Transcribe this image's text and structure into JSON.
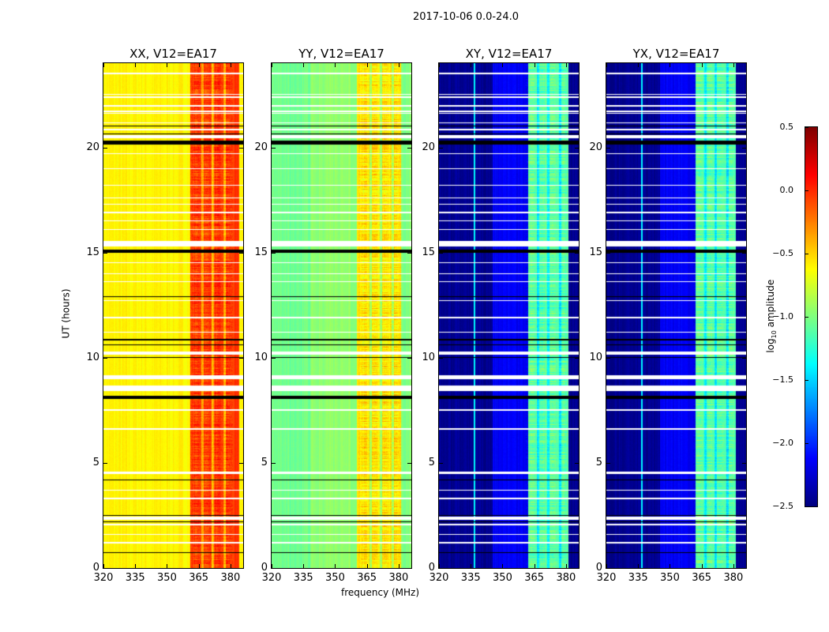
{
  "chart_data": {
    "type": "heatmap",
    "title": "2017-10-06 0.0-24.0",
    "xlabel": "frequency (MHz)",
    "ylabel": "UT (hours)",
    "xlim": [
      320,
      386
    ],
    "ylim": [
      0,
      24
    ],
    "xticks": [
      "320",
      "335",
      "350",
      "365",
      "380"
    ],
    "xtick_values": [
      320,
      335,
      350,
      365,
      380
    ],
    "yticks": [
      "0",
      "5",
      "10",
      "15",
      "20"
    ],
    "ytick_values": [
      0,
      5,
      10,
      15,
      20
    ],
    "colorbar": {
      "label": "log10 amplitude",
      "label_main": "log",
      "label_sub": "10",
      "label_rest": " amplitude",
      "range": [
        -2.5,
        0.5
      ],
      "ticks": [
        "0.5",
        "0.0",
        "−0.5",
        "−1.0",
        "−1.5",
        "−2.0",
        "−2.5"
      ],
      "tick_values": [
        0.5,
        0.0,
        -0.5,
        -1.0,
        -1.5,
        -2.0,
        -2.5
      ],
      "colormap": "jet"
    },
    "panels": [
      {
        "title": "XX, V12=EA17",
        "profile": [
          [
            320,
            361,
            -0.6
          ],
          [
            361,
            384,
            -0.05
          ],
          [
            384,
            386,
            -0.6
          ]
        ],
        "stripe_amp": 0.3
      },
      {
        "title": "YY, V12=EA17",
        "profile": [
          [
            320,
            338,
            -1.05
          ],
          [
            338,
            360,
            -0.95
          ],
          [
            360,
            381,
            -0.55
          ],
          [
            381,
            386,
            -1.0
          ]
        ],
        "stripe_amp": 0.35
      },
      {
        "title": "XY, V12=EA17",
        "profile": [
          [
            320,
            345,
            -2.45
          ],
          [
            345,
            362,
            -2.15
          ],
          [
            362,
            381,
            -1.1
          ],
          [
            381,
            386,
            -2.45
          ]
        ],
        "stripe_amp": 0.35
      },
      {
        "title": "YX, V12=EA17",
        "profile": [
          [
            320,
            345,
            -2.45
          ],
          [
            345,
            362,
            -2.15
          ],
          [
            362,
            381,
            -1.1
          ],
          [
            381,
            386,
            -2.45
          ]
        ],
        "stripe_amp": 0.35
      }
    ],
    "flagged_hours_white": [
      [
        23.5,
        23.56
      ],
      [
        22.5,
        22.56
      ],
      [
        22.38,
        22.44
      ],
      [
        21.95,
        22.01
      ],
      [
        21.7,
        21.76
      ],
      [
        21.6,
        21.65
      ],
      [
        21.15,
        21.2
      ],
      [
        20.82,
        20.9
      ],
      [
        20.45,
        20.6
      ],
      [
        19.7,
        19.74
      ],
      [
        19.0,
        19.04
      ],
      [
        18.2,
        18.25
      ],
      [
        17.6,
        17.64
      ],
      [
        17.3,
        17.35
      ],
      [
        16.9,
        16.95
      ],
      [
        16.5,
        16.55
      ],
      [
        16.1,
        16.15
      ],
      [
        15.3,
        15.55
      ],
      [
        14.5,
        14.55
      ],
      [
        14.0,
        14.04
      ],
      [
        13.6,
        13.65
      ],
      [
        12.7,
        12.75
      ],
      [
        11.9,
        11.95
      ],
      [
        11.2,
        11.25
      ],
      [
        10.15,
        10.3
      ],
      [
        9.0,
        9.2
      ],
      [
        8.45,
        8.7
      ],
      [
        7.5,
        7.55
      ],
      [
        6.6,
        6.65
      ],
      [
        4.5,
        4.6
      ],
      [
        3.7,
        3.75
      ],
      [
        3.3,
        3.35
      ],
      [
        2.3,
        2.45
      ],
      [
        2.05,
        2.12
      ],
      [
        1.6,
        1.65
      ],
      [
        1.2,
        1.25
      ]
    ],
    "flagged_hours_black": [
      [
        21.0,
        21.04
      ],
      [
        20.62,
        20.66
      ],
      [
        20.15,
        20.35
      ],
      [
        15.0,
        15.15
      ],
      [
        12.9,
        12.95
      ],
      [
        10.85,
        10.9
      ],
      [
        10.6,
        10.65
      ],
      [
        10.0,
        10.04
      ],
      [
        8.05,
        8.2
      ],
      [
        6.35,
        6.38
      ],
      [
        5.45,
        5.48
      ],
      [
        4.2,
        4.23
      ],
      [
        2.5,
        2.55
      ],
      [
        2.2,
        2.24
      ],
      [
        0.75,
        0.78
      ]
    ]
  }
}
